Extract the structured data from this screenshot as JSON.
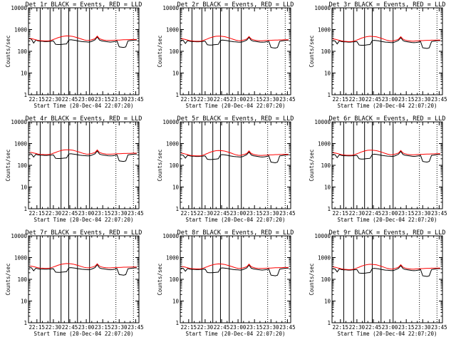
{
  "figure": {
    "background": "#ffffff",
    "axis_color": "#000000"
  },
  "colors": {
    "events": "#000000",
    "lld": "#ff0000"
  },
  "chart_data": {
    "type": "line",
    "yscale": "log",
    "ylim": [
      1,
      10000
    ],
    "xlim": [
      "22:07:20",
      "23:48:00"
    ],
    "grid": false,
    "y_tick_labels": [
      "1",
      "10",
      "100",
      "1000",
      "10000"
    ],
    "x_tick_labels": [
      "22:15",
      "22:30",
      "22:45",
      "23:00",
      "23:15",
      "23:30",
      "23:45"
    ],
    "ylabel": "Counts/sec",
    "xlabel": "Start Time (20-Dec-04 22:07:20)",
    "solid_marker_times": [
      "22:18",
      "22:27",
      "22:37",
      "22:44",
      "22:52",
      "23:03"
    ],
    "dotted_marker_times": [
      "23:27",
      "23:43"
    ],
    "series_times": [
      "22:08",
      "22:10",
      "22:12",
      "22:14",
      "22:16",
      "22:18",
      "22:20",
      "22:22",
      "22:24",
      "22:26",
      "22:28",
      "22:30",
      "22:32",
      "22:34",
      "22:36",
      "22:38",
      "22:40",
      "22:42",
      "22:44",
      "22:46",
      "22:48",
      "22:50",
      "22:52",
      "22:54",
      "22:56",
      "22:58",
      "23:00",
      "23:02",
      "23:04",
      "23:06",
      "23:08",
      "23:10",
      "23:12",
      "23:14",
      "23:16",
      "23:18",
      "23:20",
      "23:22",
      "23:24",
      "23:26",
      "23:28",
      "23:30",
      "23:32",
      "23:34",
      "23:36",
      "23:38",
      "23:40",
      "23:42",
      "23:44",
      "23:46"
    ],
    "panels": [
      {
        "title": "Det 1r BLACK = Events, RED = LLD",
        "events": [
          380,
          360,
          240,
          330,
          300,
          290,
          290,
          280,
          280,
          285,
          290,
          300,
          210,
          205,
          205,
          210,
          215,
          220,
          330,
          340,
          330,
          320,
          300,
          290,
          280,
          275,
          270,
          265,
          275,
          300,
          340,
          460,
          330,
          300,
          290,
          280,
          270,
          265,
          270,
          280,
          300,
          160,
          155,
          150,
          160,
          300,
          310,
          320,
          330,
          330
        ],
        "lld": [
          390,
          380,
          360,
          340,
          320,
          310,
          305,
          300,
          300,
          305,
          320,
          350,
          380,
          420,
          450,
          480,
          500,
          510,
          505,
          495,
          480,
          450,
          420,
          390,
          360,
          335,
          320,
          315,
          330,
          350,
          380,
          500,
          380,
          350,
          330,
          320,
          315,
          315,
          320,
          325,
          330,
          330,
          335,
          340,
          340,
          345,
          345,
          350,
          350,
          350
        ]
      },
      {
        "title": "Det 2r BLACK = Events, RED = LLD",
        "events": [
          330,
          320,
          230,
          310,
          290,
          280,
          280,
          275,
          275,
          280,
          285,
          290,
          200,
          195,
          195,
          200,
          205,
          210,
          320,
          330,
          320,
          310,
          295,
          285,
          275,
          270,
          265,
          260,
          270,
          295,
          330,
          440,
          320,
          295,
          285,
          275,
          265,
          260,
          265,
          275,
          295,
          150,
          145,
          140,
          150,
          290,
          300,
          310,
          320,
          320
        ],
        "lld": [
          380,
          370,
          350,
          330,
          310,
          300,
          295,
          290,
          290,
          295,
          310,
          340,
          370,
          410,
          440,
          470,
          490,
          500,
          495,
          485,
          470,
          440,
          410,
          380,
          350,
          325,
          310,
          305,
          320,
          340,
          370,
          480,
          370,
          340,
          320,
          310,
          305,
          305,
          310,
          315,
          320,
          320,
          325,
          330,
          330,
          335,
          335,
          340,
          340,
          340
        ]
      },
      {
        "title": "Det 3r BLACK = Events, RED = LLD",
        "events": [
          310,
          300,
          220,
          300,
          280,
          270,
          270,
          265,
          265,
          270,
          275,
          280,
          195,
          190,
          190,
          195,
          200,
          205,
          310,
          320,
          310,
          300,
          285,
          275,
          265,
          260,
          255,
          250,
          260,
          285,
          320,
          430,
          310,
          285,
          275,
          265,
          255,
          250,
          255,
          265,
          285,
          145,
          140,
          135,
          145,
          280,
          290,
          300,
          310,
          310
        ],
        "lld": [
          370,
          360,
          340,
          320,
          300,
          290,
          285,
          280,
          280,
          285,
          300,
          330,
          360,
          400,
          430,
          460,
          480,
          490,
          485,
          475,
          460,
          430,
          400,
          370,
          340,
          315,
          300,
          295,
          310,
          330,
          360,
          470,
          360,
          330,
          310,
          300,
          295,
          295,
          300,
          305,
          310,
          310,
          315,
          320,
          320,
          325,
          325,
          330,
          330,
          330
        ]
      },
      {
        "title": "Det 4r BLACK = Events, RED = LLD",
        "events": [
          340,
          330,
          240,
          320,
          300,
          290,
          290,
          285,
          285,
          290,
          295,
          300,
          210,
          205,
          205,
          210,
          215,
          220,
          330,
          340,
          330,
          320,
          305,
          295,
          285,
          280,
          275,
          270,
          280,
          305,
          340,
          460,
          330,
          305,
          295,
          285,
          275,
          270,
          275,
          285,
          305,
          160,
          155,
          150,
          160,
          300,
          310,
          320,
          330,
          330
        ],
        "lld": [
          400,
          390,
          370,
          350,
          330,
          320,
          315,
          310,
          310,
          315,
          330,
          360,
          390,
          430,
          460,
          490,
          510,
          520,
          515,
          505,
          490,
          460,
          430,
          400,
          370,
          345,
          330,
          325,
          340,
          360,
          390,
          510,
          390,
          360,
          340,
          330,
          325,
          325,
          330,
          335,
          340,
          340,
          345,
          350,
          350,
          355,
          355,
          360,
          360,
          360
        ]
      },
      {
        "title": "Det 5r BLACK = Events, RED = LLD",
        "events": [
          300,
          290,
          215,
          290,
          270,
          260,
          260,
          255,
          255,
          260,
          265,
          270,
          190,
          185,
          185,
          190,
          195,
          200,
          300,
          310,
          300,
          290,
          275,
          265,
          255,
          250,
          245,
          240,
          250,
          275,
          310,
          410,
          300,
          275,
          265,
          255,
          245,
          240,
          245,
          255,
          275,
          140,
          135,
          130,
          140,
          270,
          280,
          290,
          300,
          300
        ],
        "lld": [
          360,
          350,
          330,
          310,
          290,
          280,
          275,
          270,
          270,
          275,
          290,
          320,
          350,
          390,
          420,
          450,
          470,
          480,
          475,
          465,
          450,
          420,
          390,
          360,
          330,
          305,
          290,
          285,
          300,
          320,
          350,
          460,
          350,
          320,
          300,
          290,
          285,
          285,
          290,
          295,
          300,
          300,
          305,
          310,
          310,
          315,
          315,
          320,
          320,
          320
        ]
      },
      {
        "title": "Det 6r BLACK = Events, RED = LLD",
        "events": [
          320,
          310,
          225,
          305,
          285,
          275,
          275,
          270,
          270,
          275,
          280,
          285,
          200,
          195,
          195,
          200,
          205,
          210,
          315,
          325,
          315,
          305,
          290,
          280,
          270,
          265,
          260,
          255,
          265,
          290,
          325,
          440,
          315,
          290,
          280,
          270,
          260,
          255,
          260,
          270,
          290,
          150,
          145,
          140,
          150,
          285,
          295,
          305,
          315,
          315
        ],
        "lld": [
          380,
          370,
          350,
          330,
          310,
          300,
          295,
          290,
          290,
          295,
          310,
          340,
          370,
          410,
          440,
          470,
          490,
          500,
          495,
          485,
          470,
          440,
          410,
          380,
          350,
          325,
          310,
          305,
          320,
          340,
          370,
          480,
          370,
          340,
          320,
          310,
          305,
          305,
          310,
          315,
          320,
          320,
          325,
          330,
          330,
          335,
          335,
          340,
          340,
          340
        ]
      },
      {
        "title": "Det 7r BLACK = Events, RED = LLD",
        "events": [
          350,
          340,
          245,
          325,
          305,
          295,
          295,
          290,
          290,
          295,
          300,
          305,
          215,
          210,
          210,
          215,
          220,
          225,
          335,
          345,
          335,
          325,
          310,
          300,
          290,
          285,
          280,
          275,
          285,
          310,
          345,
          470,
          335,
          310,
          300,
          290,
          280,
          275,
          280,
          290,
          310,
          165,
          160,
          155,
          165,
          305,
          315,
          325,
          335,
          335
        ],
        "lld": [
          410,
          400,
          380,
          360,
          340,
          330,
          325,
          320,
          320,
          325,
          340,
          370,
          400,
          440,
          470,
          500,
          520,
          530,
          525,
          515,
          500,
          470,
          440,
          410,
          380,
          355,
          340,
          335,
          350,
          370,
          400,
          520,
          400,
          370,
          350,
          340,
          335,
          335,
          340,
          345,
          350,
          350,
          355,
          360,
          360,
          365,
          365,
          370,
          370,
          370
        ]
      },
      {
        "title": "Det 8r BLACK = Events, RED = LLD",
        "events": [
          330,
          320,
          235,
          315,
          295,
          285,
          285,
          280,
          280,
          285,
          290,
          295,
          205,
          200,
          200,
          205,
          210,
          215,
          325,
          335,
          325,
          315,
          300,
          290,
          280,
          275,
          270,
          265,
          275,
          300,
          335,
          450,
          325,
          300,
          290,
          280,
          270,
          265,
          270,
          280,
          300,
          155,
          150,
          145,
          155,
          295,
          305,
          315,
          325,
          325
        ],
        "lld": [
          390,
          380,
          360,
          340,
          320,
          310,
          305,
          300,
          300,
          305,
          320,
          350,
          380,
          420,
          450,
          480,
          500,
          510,
          505,
          495,
          480,
          450,
          420,
          390,
          360,
          335,
          320,
          315,
          330,
          350,
          380,
          500,
          380,
          350,
          330,
          320,
          315,
          315,
          320,
          325,
          330,
          330,
          335,
          340,
          340,
          345,
          345,
          350,
          350,
          350
        ]
      },
      {
        "title": "Det 9r BLACK = Events, RED = LLD",
        "events": [
          310,
          300,
          220,
          300,
          280,
          270,
          270,
          265,
          265,
          270,
          275,
          280,
          195,
          190,
          190,
          195,
          200,
          205,
          310,
          320,
          310,
          300,
          285,
          275,
          265,
          260,
          255,
          250,
          260,
          285,
          320,
          430,
          310,
          285,
          275,
          265,
          255,
          250,
          255,
          265,
          285,
          145,
          140,
          135,
          145,
          280,
          290,
          300,
          310,
          310
        ],
        "lld": [
          370,
          360,
          340,
          320,
          300,
          290,
          285,
          280,
          280,
          285,
          300,
          330,
          360,
          400,
          430,
          460,
          480,
          490,
          485,
          475,
          460,
          430,
          400,
          370,
          340,
          315,
          300,
          295,
          310,
          330,
          360,
          470,
          360,
          330,
          310,
          300,
          295,
          295,
          300,
          305,
          310,
          310,
          315,
          320,
          320,
          325,
          325,
          330,
          330,
          330
        ]
      }
    ]
  }
}
